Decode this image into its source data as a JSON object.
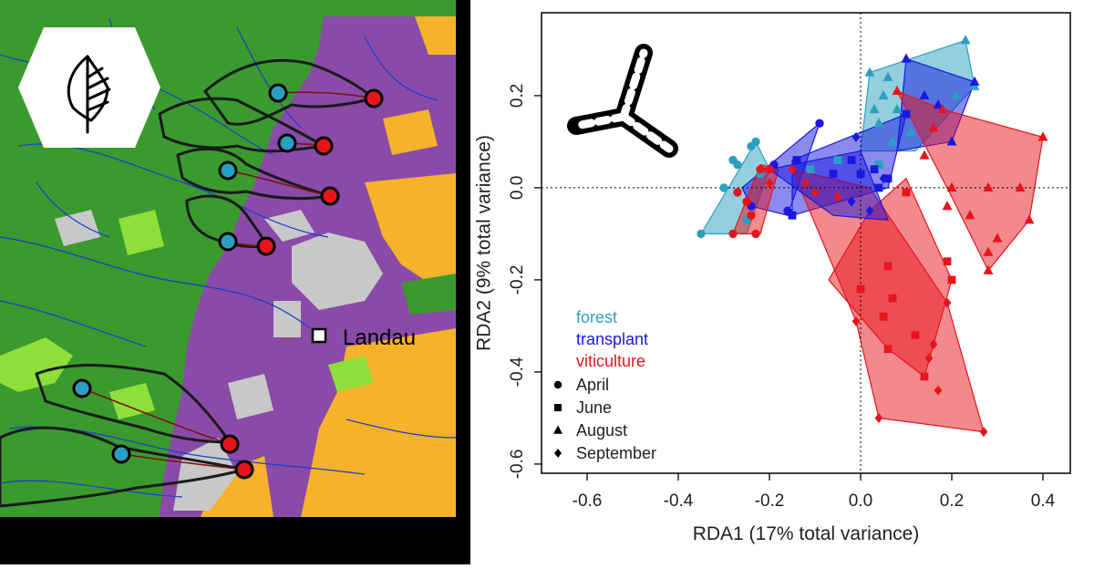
{
  "map": {
    "city_label": "Landau",
    "colors": {
      "forest": "#3a9a2e",
      "vineyard": "#8a4aa8",
      "urban": "#c8c8c8",
      "agriculture": "#f5b22a",
      "grassland": "#8fdf3a",
      "river": "#1a3cd0",
      "forest_site": "#2aa0c0",
      "viticulture_site": "#e8141c",
      "stream_outline": "#1a1a1a"
    },
    "logo_icon": "leaf-tree-icon"
  },
  "chart_data": {
    "type": "scatter",
    "xlabel": "RDA1 (17% total variance)",
    "ylabel": "RDA2 (9% total variance)",
    "xlim": [
      -0.7,
      0.46
    ],
    "ylim": [
      -0.62,
      0.38
    ],
    "xticks": [
      -0.6,
      -0.4,
      -0.2,
      0.0,
      0.2,
      0.4
    ],
    "xtick_labels": [
      "-0.6",
      "-0.4",
      "-0.2",
      "0.0",
      "0.2",
      "0.4"
    ],
    "yticks": [
      -0.6,
      -0.4,
      -0.2,
      0.0,
      0.2
    ],
    "ytick_labels": [
      "-0.6",
      "-0.4",
      "-0.2",
      "0.0",
      "0.2"
    ],
    "reference_lines": {
      "x": 0,
      "y": 0,
      "style": "dotted"
    },
    "grid": false,
    "icon": "boomerang-icon",
    "legend": {
      "placement": "bottom-left",
      "treatments": [
        {
          "label": "forest",
          "color": "#2aa0c0"
        },
        {
          "label": "transplant",
          "color": "#1818e0"
        },
        {
          "label": "viticulture",
          "color": "#e8141c"
        }
      ],
      "months": [
        {
          "label": "April",
          "shape": "circle"
        },
        {
          "label": "June",
          "shape": "square"
        },
        {
          "label": "August",
          "shape": "triangle"
        },
        {
          "label": "September",
          "shape": "diamond"
        }
      ]
    },
    "hulls": [
      {
        "series": "forest",
        "month": "April",
        "color": "#2aa0c0",
        "points": [
          [
            -0.35,
            -0.1
          ],
          [
            -0.23,
            0.1
          ],
          [
            -0.2,
            0.04
          ],
          [
            -0.25,
            -0.1
          ]
        ]
      },
      {
        "series": "forest",
        "month": "August",
        "color": "#2aa0c0",
        "points": [
          [
            0.02,
            0.25
          ],
          [
            0.23,
            0.32
          ],
          [
            0.25,
            0.22
          ],
          [
            0.12,
            0.08
          ],
          [
            0.0,
            0.08
          ]
        ]
      },
      {
        "series": "transplant",
        "month": "April",
        "color": "#1818e0",
        "points": [
          [
            -0.26,
            0.0
          ],
          [
            -0.09,
            0.14
          ],
          [
            -0.16,
            -0.06
          ],
          [
            -0.24,
            -0.04
          ]
        ]
      },
      {
        "series": "transplant",
        "month": "June",
        "color": "#1818e0",
        "points": [
          [
            -0.15,
            0.06
          ],
          [
            0.1,
            0.16
          ],
          [
            0.06,
            0.0
          ],
          [
            -0.15,
            -0.06
          ]
        ]
      },
      {
        "series": "transplant",
        "month": "August",
        "color": "#1818e0",
        "points": [
          [
            0.1,
            0.28
          ],
          [
            0.25,
            0.23
          ],
          [
            0.2,
            0.1
          ],
          [
            0.08,
            0.08
          ]
        ]
      },
      {
        "series": "viticulture",
        "month": "April",
        "color": "#e8141c",
        "points": [
          [
            -0.28,
            -0.1
          ],
          [
            -0.22,
            0.05
          ],
          [
            -0.18,
            0.04
          ],
          [
            -0.22,
            -0.1
          ]
        ]
      },
      {
        "series": "viticulture",
        "month": "June",
        "color": "#e8141c",
        "points": [
          [
            -0.07,
            -0.2
          ],
          [
            0.02,
            -0.05
          ],
          [
            0.1,
            0.02
          ],
          [
            0.2,
            -0.2
          ],
          [
            0.14,
            -0.41
          ],
          [
            0.06,
            -0.35
          ]
        ]
      },
      {
        "series": "viticulture",
        "month": "August",
        "color": "#e8141c",
        "points": [
          [
            0.08,
            0.21
          ],
          [
            0.18,
            0.17
          ],
          [
            0.4,
            0.11
          ],
          [
            0.37,
            -0.07
          ],
          [
            0.28,
            -0.18
          ],
          [
            0.2,
            -0.02
          ]
        ]
      },
      {
        "series": "viticulture",
        "month": "September",
        "color": "#e8141c",
        "points": [
          [
            -0.15,
            0.04
          ],
          [
            0.02,
            0.0
          ],
          [
            0.19,
            -0.25
          ],
          [
            0.27,
            -0.53
          ],
          [
            0.04,
            -0.5
          ],
          [
            -0.01,
            -0.29
          ]
        ]
      },
      {
        "series": "transplant",
        "month": "September",
        "color": "#1818e0",
        "points": [
          [
            -0.2,
            0.04
          ],
          [
            0.0,
            0.08
          ],
          [
            0.06,
            -0.07
          ],
          [
            -0.06,
            -0.06
          ]
        ]
      }
    ],
    "series": [
      {
        "name": "forest",
        "color": "#2aa0c0",
        "points": [
          {
            "x": -0.35,
            "y": -0.1,
            "m": "circle"
          },
          {
            "x": -0.3,
            "y": 0.0,
            "m": "circle"
          },
          {
            "x": -0.28,
            "y": 0.06,
            "m": "circle"
          },
          {
            "x": -0.23,
            "y": 0.1,
            "m": "circle"
          },
          {
            "x": -0.25,
            "y": -0.07,
            "m": "circle"
          },
          {
            "x": -0.27,
            "y": 0.05,
            "m": "circle"
          },
          {
            "x": -0.24,
            "y": 0.09,
            "m": "circle"
          },
          {
            "x": -0.22,
            "y": 0.03,
            "m": "circle"
          },
          {
            "x": 0.02,
            "y": 0.25,
            "m": "triangle"
          },
          {
            "x": 0.06,
            "y": 0.24,
            "m": "triangle"
          },
          {
            "x": 0.23,
            "y": 0.32,
            "m": "triangle"
          },
          {
            "x": 0.25,
            "y": 0.22,
            "m": "triangle"
          },
          {
            "x": 0.05,
            "y": 0.2,
            "m": "triangle"
          },
          {
            "x": 0.03,
            "y": 0.17,
            "m": "triangle"
          },
          {
            "x": 0.08,
            "y": 0.17,
            "m": "triangle"
          },
          {
            "x": 0.04,
            "y": 0.14,
            "m": "triangle"
          },
          {
            "x": 0.11,
            "y": 0.12,
            "m": "triangle"
          },
          {
            "x": 0.07,
            "y": 0.1,
            "m": "triangle"
          },
          {
            "x": 0.21,
            "y": 0.2,
            "m": "triangle"
          },
          {
            "x": -0.11,
            "y": 0.04,
            "m": "square"
          },
          {
            "x": -0.05,
            "y": 0.06,
            "m": "square"
          },
          {
            "x": 0.04,
            "y": 0.05,
            "m": "square"
          }
        ]
      },
      {
        "name": "transplant",
        "color": "#1818e0",
        "points": [
          {
            "x": -0.09,
            "y": 0.14,
            "m": "circle"
          },
          {
            "x": -0.16,
            "y": -0.05,
            "m": "circle"
          },
          {
            "x": -0.19,
            "y": 0.05,
            "m": "circle"
          },
          {
            "x": -0.24,
            "y": -0.04,
            "m": "circle"
          },
          {
            "x": -0.15,
            "y": -0.06,
            "m": "square"
          },
          {
            "x": -0.14,
            "y": 0.06,
            "m": "square"
          },
          {
            "x": -0.02,
            "y": 0.06,
            "m": "square"
          },
          {
            "x": 0.0,
            "y": 0.03,
            "m": "square"
          },
          {
            "x": 0.03,
            "y": 0.04,
            "m": "square"
          },
          {
            "x": 0.06,
            "y": 0.02,
            "m": "square"
          },
          {
            "x": 0.1,
            "y": 0.16,
            "m": "square"
          },
          {
            "x": -0.06,
            "y": 0.03,
            "m": "square"
          },
          {
            "x": 0.04,
            "y": 0.0,
            "m": "square"
          },
          {
            "x": 0.1,
            "y": 0.28,
            "m": "triangle"
          },
          {
            "x": 0.25,
            "y": 0.23,
            "m": "triangle"
          },
          {
            "x": 0.2,
            "y": 0.1,
            "m": "triangle"
          },
          {
            "x": 0.17,
            "y": 0.18,
            "m": "triangle"
          },
          {
            "x": 0.14,
            "y": 0.2,
            "m": "triangle"
          },
          {
            "x": -0.02,
            "y": -0.03,
            "m": "diamond"
          },
          {
            "x": 0.02,
            "y": -0.05,
            "m": "diamond"
          },
          {
            "x": 0.05,
            "y": 0.02,
            "m": "diamond"
          },
          {
            "x": -0.01,
            "y": 0.11,
            "m": "diamond"
          }
        ]
      },
      {
        "name": "viticulture",
        "color": "#e8141c",
        "points": [
          {
            "x": -0.28,
            "y": -0.1,
            "m": "circle"
          },
          {
            "x": -0.27,
            "y": -0.01,
            "m": "circle"
          },
          {
            "x": -0.23,
            "y": -0.1,
            "m": "circle"
          },
          {
            "x": -0.25,
            "y": -0.03,
            "m": "circle"
          },
          {
            "x": -0.22,
            "y": 0.04,
            "m": "circle"
          },
          {
            "x": -0.24,
            "y": -0.06,
            "m": "circle"
          },
          {
            "x": -0.2,
            "y": 0.04,
            "m": "circle"
          },
          {
            "x": 0.1,
            "y": -0.01,
            "m": "square"
          },
          {
            "x": 0.19,
            "y": -0.16,
            "m": "square"
          },
          {
            "x": 0.2,
            "y": -0.2,
            "m": "square"
          },
          {
            "x": 0.06,
            "y": -0.17,
            "m": "square"
          },
          {
            "x": 0.0,
            "y": -0.22,
            "m": "square"
          },
          {
            "x": 0.07,
            "y": -0.24,
            "m": "square"
          },
          {
            "x": 0.12,
            "y": -0.32,
            "m": "square"
          },
          {
            "x": 0.06,
            "y": -0.35,
            "m": "square"
          },
          {
            "x": 0.14,
            "y": -0.41,
            "m": "square"
          },
          {
            "x": 0.05,
            "y": -0.28,
            "m": "square"
          },
          {
            "x": 0.4,
            "y": 0.11,
            "m": "triangle"
          },
          {
            "x": 0.37,
            "y": -0.07,
            "m": "triangle"
          },
          {
            "x": 0.28,
            "y": -0.18,
            "m": "triangle"
          },
          {
            "x": 0.28,
            "y": -0.14,
            "m": "triangle"
          },
          {
            "x": 0.3,
            "y": -0.11,
            "m": "triangle"
          },
          {
            "x": 0.24,
            "y": -0.06,
            "m": "triangle"
          },
          {
            "x": 0.19,
            "y": -0.04,
            "m": "triangle"
          },
          {
            "x": 0.28,
            "y": 0.0,
            "m": "triangle"
          },
          {
            "x": 0.35,
            "y": 0.0,
            "m": "triangle"
          },
          {
            "x": 0.18,
            "y": 0.17,
            "m": "triangle"
          },
          {
            "x": 0.16,
            "y": 0.13,
            "m": "triangle"
          },
          {
            "x": 0.14,
            "y": 0.07,
            "m": "triangle"
          },
          {
            "x": 0.2,
            "y": 0.0,
            "m": "triangle"
          },
          {
            "x": 0.08,
            "y": 0.21,
            "m": "triangle"
          },
          {
            "x": -0.01,
            "y": -0.29,
            "m": "diamond"
          },
          {
            "x": 0.04,
            "y": -0.5,
            "m": "diamond"
          },
          {
            "x": 0.27,
            "y": -0.53,
            "m": "diamond"
          },
          {
            "x": 0.19,
            "y": -0.25,
            "m": "diamond"
          },
          {
            "x": 0.17,
            "y": -0.44,
            "m": "diamond"
          },
          {
            "x": 0.16,
            "y": -0.34,
            "m": "diamond"
          },
          {
            "x": 0.15,
            "y": -0.37,
            "m": "diamond"
          },
          {
            "x": -0.15,
            "y": 0.04,
            "m": "diamond"
          },
          {
            "x": -0.12,
            "y": 0.01,
            "m": "diamond"
          },
          {
            "x": -0.2,
            "y": 0.01,
            "m": "diamond"
          },
          {
            "x": -0.05,
            "y": -0.02,
            "m": "diamond"
          },
          {
            "x": -0.1,
            "y": -0.01,
            "m": "diamond"
          }
        ]
      }
    ]
  }
}
